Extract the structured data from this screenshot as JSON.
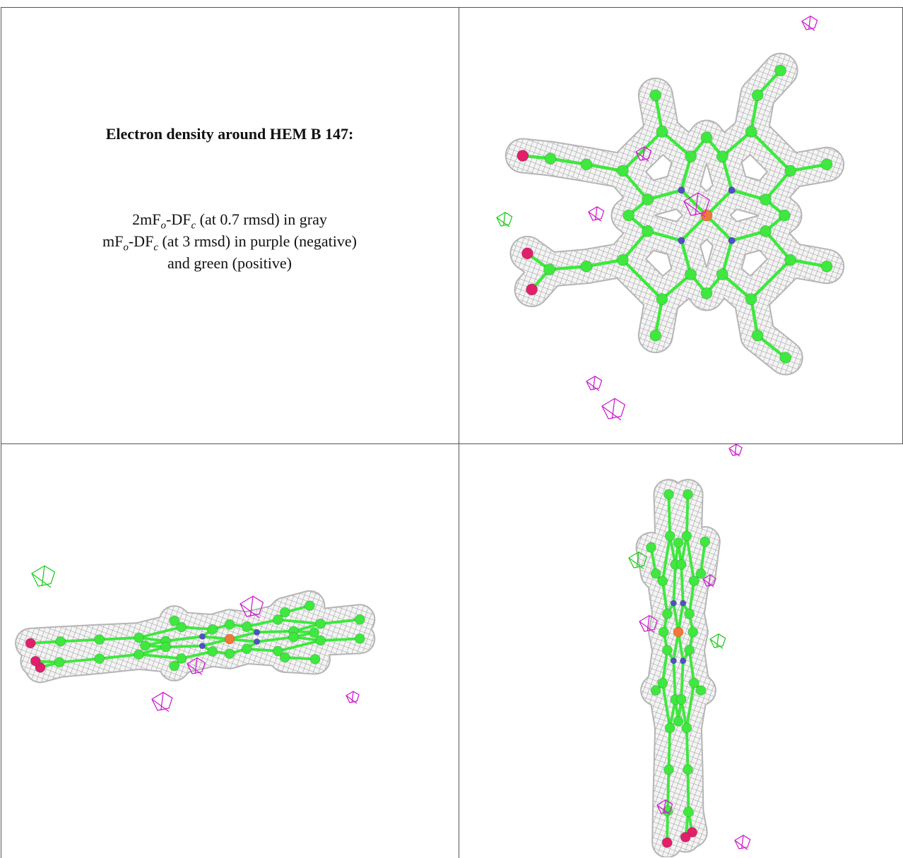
{
  "caption": {
    "title": "Electron density around HEM B 147:",
    "line1": [
      "2mF",
      "o",
      "-DF",
      "c",
      " (at 0.7 rmsd) in gray"
    ],
    "line2": [
      "mF",
      "o",
      "-DF",
      "c",
      " (at 3 rmsd) in purple (negative)"
    ],
    "line3": "and green (positive)"
  }
}
